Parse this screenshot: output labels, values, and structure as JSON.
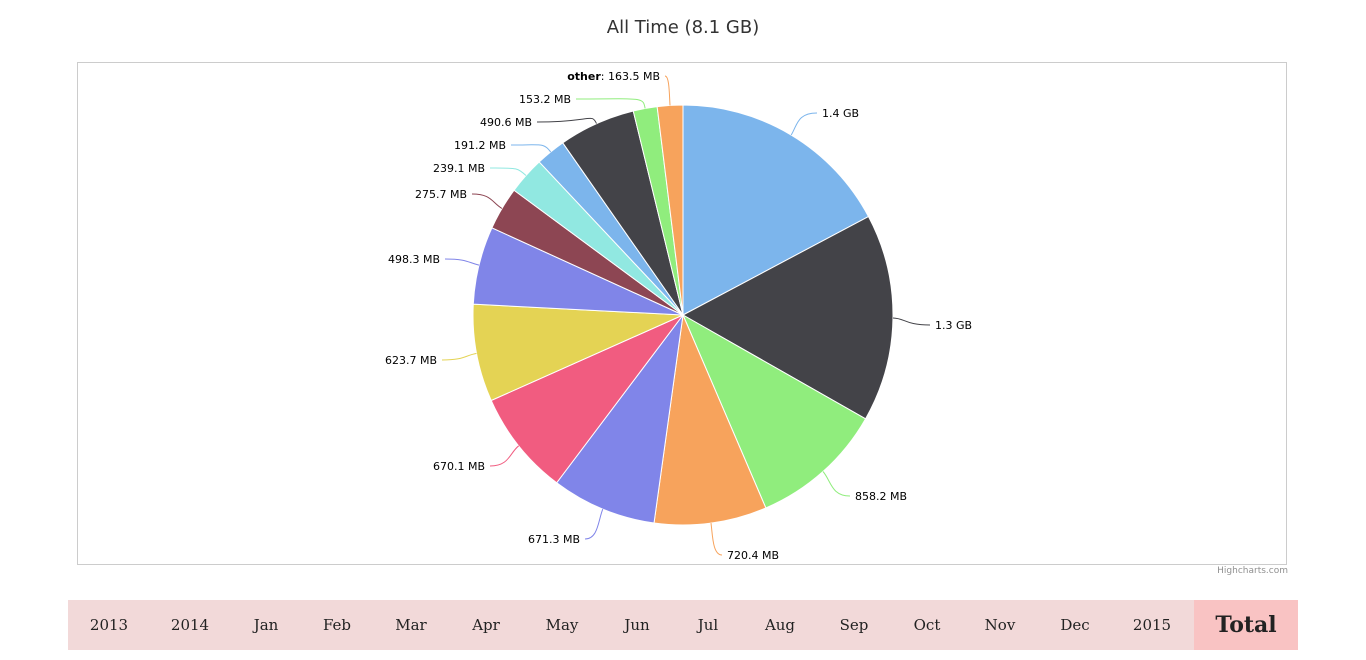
{
  "header": {
    "title": "All Time (8.1 GB)"
  },
  "credits": "Highcharts.com",
  "tabs": [
    {
      "label": "2013",
      "active": false
    },
    {
      "label": "2014",
      "active": false
    },
    {
      "label": "Jan",
      "active": false
    },
    {
      "label": "Feb",
      "active": false
    },
    {
      "label": "Mar",
      "active": false
    },
    {
      "label": "Apr",
      "active": false
    },
    {
      "label": "May",
      "active": false
    },
    {
      "label": "Jun",
      "active": false
    },
    {
      "label": "Jul",
      "active": false
    },
    {
      "label": "Aug",
      "active": false
    },
    {
      "label": "Sep",
      "active": false
    },
    {
      "label": "Oct",
      "active": false
    },
    {
      "label": "Nov",
      "active": false
    },
    {
      "label": "Dec",
      "active": false
    },
    {
      "label": "2015",
      "active": false
    },
    {
      "label": "Total",
      "active": true
    }
  ],
  "chart_data": {
    "type": "pie",
    "title": "All Time (8.1 GB)",
    "slices": [
      {
        "name": "",
        "label": "1.4 GB",
        "value": 1433.6,
        "color": "#7cb5ec"
      },
      {
        "name": "",
        "label": "1.3 GB",
        "value": 1331.2,
        "color": "#434348"
      },
      {
        "name": "",
        "label": "858.2 MB",
        "value": 858.2,
        "color": "#90ed7d"
      },
      {
        "name": "",
        "label": "720.4 MB",
        "value": 720.4,
        "color": "#f7a35c"
      },
      {
        "name": "",
        "label": "671.3 MB",
        "value": 671.3,
        "color": "#8085e9"
      },
      {
        "name": "",
        "label": "670.1 MB",
        "value": 670.1,
        "color": "#f15c80"
      },
      {
        "name": "",
        "label": "623.7 MB",
        "value": 623.7,
        "color": "#e4d354"
      },
      {
        "name": "",
        "label": "498.3 MB",
        "value": 498.3,
        "color": "#8085e8"
      },
      {
        "name": "",
        "label": "275.7 MB",
        "value": 275.7,
        "color": "#8d4653"
      },
      {
        "name": "",
        "label": "239.1 MB",
        "value": 239.1,
        "color": "#91e8e1"
      },
      {
        "name": "",
        "label": "191.2 MB",
        "value": 191.2,
        "color": "#7cb5ec"
      },
      {
        "name": "",
        "label": "490.6 MB",
        "value": 490.6,
        "color": "#434348"
      },
      {
        "name": "",
        "label": "153.2 MB",
        "value": 153.2,
        "color": "#90ed7d"
      },
      {
        "name": "other",
        "label": "163.5 MB",
        "value": 163.5,
        "color": "#f7a35c"
      }
    ]
  }
}
